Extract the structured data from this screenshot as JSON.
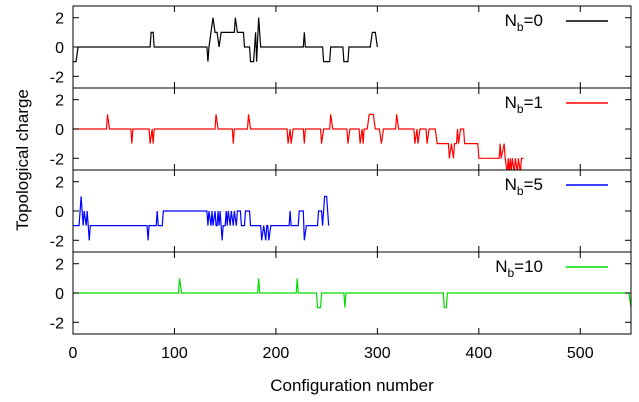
{
  "chart_data": {
    "type": "line",
    "xlabel": "Configuration number",
    "ylabel": "Topological charge",
    "xlim": [
      0,
      550
    ],
    "x_ticks": [
      0,
      100,
      200,
      300,
      400,
      500
    ],
    "ylim": [
      -2.8,
      2.8
    ],
    "y_ticks": [
      -2,
      0,
      2
    ],
    "y_tick_labels": [
      "-2",
      "0",
      "2"
    ],
    "legend_placement": "top-right of each panel",
    "grid": false,
    "panels": [
      {
        "name": "Nb=0",
        "legend_main": "N",
        "legend_sub": "b",
        "legend_rest": "=0",
        "color": "#000000",
        "points": [
          [
            0,
            -1
          ],
          [
            3,
            -1
          ],
          [
            5,
            0
          ],
          [
            76,
            0
          ],
          [
            77,
            1
          ],
          [
            79,
            1
          ],
          [
            80,
            0
          ],
          [
            132,
            0
          ],
          [
            133,
            -1
          ],
          [
            134,
            0
          ],
          [
            136,
            1
          ],
          [
            138,
            2
          ],
          [
            140,
            1
          ],
          [
            142,
            1
          ],
          [
            144,
            0
          ],
          [
            146,
            1
          ],
          [
            159,
            1
          ],
          [
            160,
            2
          ],
          [
            162,
            1
          ],
          [
            168,
            1
          ],
          [
            169,
            0
          ],
          [
            174,
            0
          ],
          [
            175,
            -1
          ],
          [
            178,
            -1
          ],
          [
            179,
            0
          ],
          [
            180,
            1
          ],
          [
            181,
            -1
          ],
          [
            183,
            2
          ],
          [
            185,
            0
          ],
          [
            227,
            0
          ],
          [
            228,
            1
          ],
          [
            229,
            0
          ],
          [
            246,
            0
          ],
          [
            247,
            -1
          ],
          [
            253,
            -1
          ],
          [
            254,
            0
          ],
          [
            266,
            0
          ],
          [
            267,
            -1
          ],
          [
            271,
            -1
          ],
          [
            272,
            0
          ],
          [
            293,
            0
          ],
          [
            295,
            1
          ],
          [
            298,
            1
          ],
          [
            300,
            0
          ]
        ]
      },
      {
        "name": "Nb=1",
        "legend_main": "N",
        "legend_sub": "b",
        "legend_rest": "=1",
        "color": "#ff0000",
        "points": [
          [
            0,
            0
          ],
          [
            33,
            0
          ],
          [
            34,
            1
          ],
          [
            36,
            0
          ],
          [
            57,
            0
          ],
          [
            58,
            -1
          ],
          [
            59,
            0
          ],
          [
            75,
            0
          ],
          [
            76,
            -1
          ],
          [
            78,
            0
          ],
          [
            79,
            -1
          ],
          [
            80,
            0
          ],
          [
            140,
            0
          ],
          [
            141,
            1
          ],
          [
            143,
            0
          ],
          [
            157,
            0
          ],
          [
            158,
            -1
          ],
          [
            159,
            0
          ],
          [
            172,
            0
          ],
          [
            173,
            1
          ],
          [
            175,
            0
          ],
          [
            211,
            0
          ],
          [
            212,
            -1
          ],
          [
            214,
            0
          ],
          [
            215,
            -1
          ],
          [
            217,
            0
          ],
          [
            227,
            0
          ],
          [
            228,
            -1
          ],
          [
            229,
            0
          ],
          [
            244,
            0
          ],
          [
            245,
            -1
          ],
          [
            247,
            0
          ],
          [
            253,
            0
          ],
          [
            254,
            1
          ],
          [
            256,
            0
          ],
          [
            270,
            0
          ],
          [
            271,
            -1
          ],
          [
            273,
            0
          ],
          [
            282,
            0
          ],
          [
            283,
            -1
          ],
          [
            285,
            0
          ],
          [
            286,
            -1
          ],
          [
            287,
            0
          ],
          [
            290,
            0
          ],
          [
            292,
            1
          ],
          [
            296,
            1
          ],
          [
            298,
            0
          ],
          [
            302,
            0
          ],
          [
            304,
            -1
          ],
          [
            306,
            0
          ],
          [
            318,
            0
          ],
          [
            319,
            1
          ],
          [
            321,
            0
          ],
          [
            336,
            0
          ],
          [
            337,
            -1
          ],
          [
            339,
            0
          ],
          [
            340,
            -1
          ],
          [
            342,
            0
          ],
          [
            348,
            0
          ],
          [
            349,
            -1
          ],
          [
            351,
            0
          ],
          [
            357,
            0
          ],
          [
            359,
            -1
          ],
          [
            370,
            -1
          ],
          [
            371,
            -2
          ],
          [
            373,
            -1
          ],
          [
            375,
            -2
          ],
          [
            376,
            -1
          ],
          [
            378,
            -1
          ],
          [
            379,
            0
          ],
          [
            380,
            -1
          ],
          [
            382,
            0
          ],
          [
            385,
            0
          ],
          [
            386,
            -1
          ],
          [
            399,
            -1
          ],
          [
            400,
            -2
          ],
          [
            420,
            -2
          ],
          [
            421,
            -1
          ],
          [
            422,
            -2
          ],
          [
            425,
            -1
          ],
          [
            426,
            -2
          ],
          [
            428,
            -3
          ],
          [
            429,
            -2
          ],
          [
            430,
            -3
          ],
          [
            431,
            -2
          ],
          [
            432,
            -3
          ],
          [
            433,
            -2
          ],
          [
            435,
            -3
          ],
          [
            436,
            -2
          ],
          [
            438,
            -3
          ],
          [
            439,
            -2
          ],
          [
            441,
            -3
          ],
          [
            442,
            -2
          ],
          [
            444,
            -2
          ]
        ]
      },
      {
        "name": "Nb=5",
        "legend_main": "N",
        "legend_sub": "b",
        "legend_rest": "=5",
        "color": "#0000ff",
        "points": [
          [
            0,
            -1
          ],
          [
            6,
            -1
          ],
          [
            7,
            0
          ],
          [
            8,
            1
          ],
          [
            9,
            0
          ],
          [
            10,
            -1
          ],
          [
            11,
            0
          ],
          [
            13,
            -1
          ],
          [
            14,
            0
          ],
          [
            15,
            -1
          ],
          [
            16,
            -2
          ],
          [
            17,
            -1
          ],
          [
            73,
            -1
          ],
          [
            74,
            -2
          ],
          [
            75,
            -1
          ],
          [
            82,
            -1
          ],
          [
            83,
            0
          ],
          [
            84,
            -1
          ],
          [
            88,
            -1
          ],
          [
            89,
            0
          ],
          [
            132,
            0
          ],
          [
            133,
            -1
          ],
          [
            134,
            0
          ],
          [
            136,
            -1
          ],
          [
            137,
            0
          ],
          [
            138,
            -1
          ],
          [
            140,
            0
          ],
          [
            141,
            -1
          ],
          [
            142,
            -1
          ],
          [
            143,
            0
          ],
          [
            144,
            -1
          ],
          [
            145,
            0
          ],
          [
            147,
            -2
          ],
          [
            148,
            -1
          ],
          [
            150,
            -1
          ],
          [
            151,
            0
          ],
          [
            152,
            -1
          ],
          [
            153,
            0
          ],
          [
            155,
            -1
          ],
          [
            156,
            0
          ],
          [
            158,
            -1
          ],
          [
            159,
            0
          ],
          [
            161,
            -1
          ],
          [
            162,
            0
          ],
          [
            165,
            0
          ],
          [
            166,
            -1
          ],
          [
            169,
            -1
          ],
          [
            170,
            0
          ],
          [
            174,
            0
          ],
          [
            175,
            -1
          ],
          [
            185,
            -1
          ],
          [
            186,
            -2
          ],
          [
            188,
            -1
          ],
          [
            190,
            -2
          ],
          [
            191,
            -1
          ],
          [
            192,
            -1
          ],
          [
            193,
            -2
          ],
          [
            195,
            -1
          ],
          [
            213,
            -1
          ],
          [
            214,
            0
          ],
          [
            215,
            -1
          ],
          [
            222,
            -1
          ],
          [
            223,
            0
          ],
          [
            227,
            0
          ],
          [
            228,
            -2
          ],
          [
            230,
            -1
          ],
          [
            241,
            -1
          ],
          [
            242,
            0
          ],
          [
            245,
            0
          ],
          [
            246,
            -1
          ],
          [
            248,
            1
          ],
          [
            250,
            1
          ],
          [
            252,
            -1
          ]
        ]
      },
      {
        "name": "Nb=10",
        "legend_main": "N",
        "legend_sub": "b",
        "legend_rest": "=10",
        "color": "#00dd00",
        "points": [
          [
            0,
            0
          ],
          [
            104,
            0
          ],
          [
            105,
            1
          ],
          [
            107,
            0
          ],
          [
            182,
            0
          ],
          [
            183,
            1
          ],
          [
            184,
            0
          ],
          [
            220,
            0
          ],
          [
            221,
            1
          ],
          [
            222,
            0
          ],
          [
            240,
            0
          ],
          [
            241,
            -1
          ],
          [
            244,
            -1
          ],
          [
            245,
            0
          ],
          [
            267,
            0
          ],
          [
            268,
            -1
          ],
          [
            269,
            0
          ],
          [
            365,
            0
          ],
          [
            366,
            -1
          ],
          [
            368,
            -1
          ],
          [
            369,
            0
          ],
          [
            548,
            0
          ],
          [
            550,
            -1
          ]
        ]
      }
    ]
  }
}
